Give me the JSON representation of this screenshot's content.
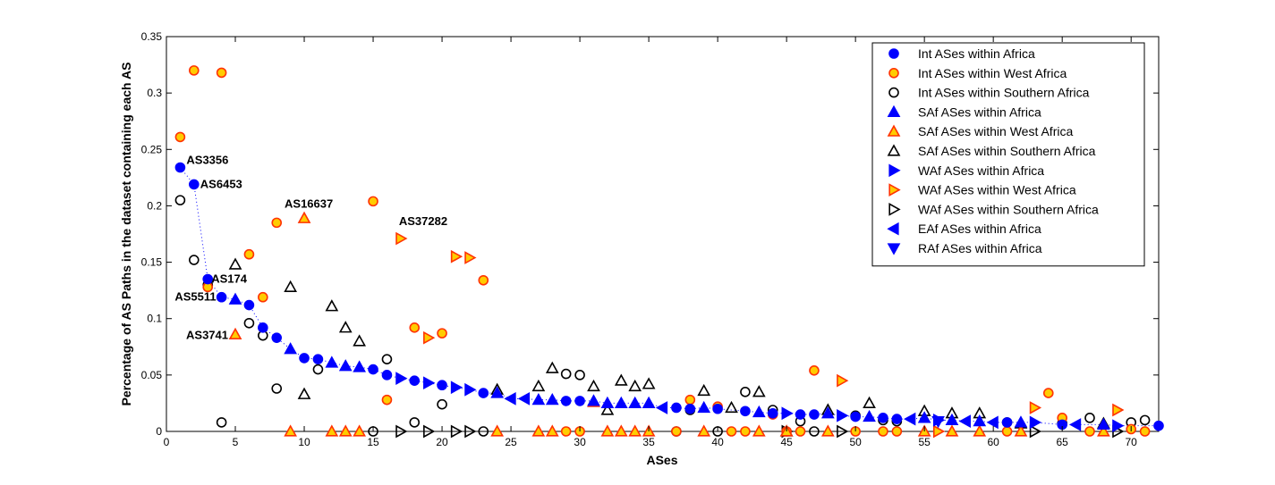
{
  "chart_data": {
    "type": "scatter",
    "title": "",
    "xlabel": "ASes",
    "ylabel": "Percentage of AS Paths in the dataset containing each AS",
    "xlim": [
      0,
      72
    ],
    "ylim": [
      0,
      0.35
    ],
    "xticks": [
      0,
      5,
      10,
      15,
      20,
      25,
      30,
      35,
      40,
      45,
      50,
      55,
      60,
      65,
      70
    ],
    "yticks": [
      0,
      0.05,
      0.1,
      0.15,
      0.2,
      0.25,
      0.3,
      0.35
    ],
    "grid": false,
    "legend_position": "top-right",
    "series": [
      {
        "name": "Int ASes within Africa",
        "marker": "circle",
        "fill": "#0000ff",
        "stroke": "#0000ff",
        "line": "dotted",
        "points": [
          [
            1,
            0.234
          ],
          [
            2,
            0.219
          ],
          [
            3,
            0.135
          ],
          [
            4,
            0.119
          ],
          [
            6,
            0.112
          ],
          [
            7,
            0.092
          ],
          [
            8,
            0.083
          ],
          [
            10,
            0.065
          ],
          [
            11,
            0.064
          ],
          [
            15,
            0.055
          ],
          [
            16,
            0.05
          ],
          [
            18,
            0.045
          ],
          [
            20,
            0.041
          ],
          [
            23,
            0.034
          ],
          [
            29,
            0.027
          ],
          [
            30,
            0.027
          ],
          [
            37,
            0.021
          ],
          [
            38,
            0.02
          ],
          [
            40,
            0.02
          ],
          [
            42,
            0.018
          ],
          [
            44,
            0.016
          ],
          [
            46,
            0.015
          ],
          [
            47,
            0.015
          ],
          [
            50,
            0.013
          ],
          [
            52,
            0.012
          ],
          [
            53,
            0.011
          ],
          [
            61,
            0.008
          ],
          [
            65,
            0.006
          ],
          [
            72,
            0.005
          ]
        ]
      },
      {
        "name": "Int ASes within West Africa",
        "marker": "circle",
        "fill": "#ffcc00",
        "stroke": "#ff3300",
        "line": "none",
        "points": [
          [
            1,
            0.261
          ],
          [
            2,
            0.32
          ],
          [
            3,
            0.128
          ],
          [
            4,
            0.318
          ],
          [
            6,
            0.157
          ],
          [
            7,
            0.119
          ],
          [
            8,
            0.185
          ],
          [
            15,
            0.204
          ],
          [
            16,
            0.028
          ],
          [
            18,
            0.092
          ],
          [
            20,
            0.087
          ],
          [
            23,
            0.134
          ],
          [
            29,
            0.0
          ],
          [
            30,
            0.0
          ],
          [
            37,
            0.0
          ],
          [
            38,
            0.028
          ],
          [
            40,
            0.022
          ],
          [
            41,
            0.0
          ],
          [
            42,
            0.0
          ],
          [
            44,
            0.015
          ],
          [
            45,
            0.0
          ],
          [
            46,
            0.0
          ],
          [
            47,
            0.054
          ],
          [
            50,
            0.0
          ],
          [
            52,
            0.0
          ],
          [
            53,
            0.0
          ],
          [
            61,
            0.0
          ],
          [
            64,
            0.034
          ],
          [
            65,
            0.012
          ],
          [
            67,
            0.0
          ],
          [
            70,
            0.002
          ],
          [
            71,
            0.0
          ]
        ]
      },
      {
        "name": "Int ASes within Southern Africa",
        "marker": "circle",
        "fill": "none",
        "stroke": "#000000",
        "line": "none",
        "points": [
          [
            1,
            0.205
          ],
          [
            2,
            0.152
          ],
          [
            3,
            0.13
          ],
          [
            4,
            0.008
          ],
          [
            6,
            0.096
          ],
          [
            7,
            0.085
          ],
          [
            8,
            0.038
          ],
          [
            11,
            0.055
          ],
          [
            15,
            0.0
          ],
          [
            16,
            0.064
          ],
          [
            18,
            0.008
          ],
          [
            20,
            0.024
          ],
          [
            23,
            0.0
          ],
          [
            29,
            0.051
          ],
          [
            30,
            0.05
          ],
          [
            37,
            0.0
          ],
          [
            38,
            0.019
          ],
          [
            40,
            0.0
          ],
          [
            42,
            0.035
          ],
          [
            44,
            0.019
          ],
          [
            46,
            0.009
          ],
          [
            47,
            0.0
          ],
          [
            50,
            0.014
          ],
          [
            52,
            0.01
          ],
          [
            53,
            0.009
          ],
          [
            61,
            0.008
          ],
          [
            65,
            0.007
          ],
          [
            67,
            0.012
          ],
          [
            70,
            0.008
          ],
          [
            71,
            0.01
          ]
        ]
      },
      {
        "name": "SAf ASes within Africa",
        "marker": "triangle-up",
        "fill": "#0000ff",
        "stroke": "#0000ff",
        "line": "dotted",
        "points": [
          [
            5,
            0.117
          ],
          [
            9,
            0.073
          ],
          [
            12,
            0.061
          ],
          [
            13,
            0.058
          ],
          [
            14,
            0.057
          ],
          [
            24,
            0.034
          ],
          [
            27,
            0.028
          ],
          [
            28,
            0.028
          ],
          [
            31,
            0.027
          ],
          [
            32,
            0.025
          ],
          [
            33,
            0.025
          ],
          [
            34,
            0.025
          ],
          [
            35,
            0.025
          ],
          [
            39,
            0.021
          ],
          [
            43,
            0.017
          ],
          [
            48,
            0.016
          ],
          [
            51,
            0.013
          ],
          [
            55,
            0.012
          ],
          [
            57,
            0.01
          ],
          [
            59,
            0.009
          ],
          [
            62,
            0.008
          ],
          [
            68,
            0.006
          ]
        ]
      },
      {
        "name": "SAf ASes within West Africa",
        "marker": "triangle-up",
        "fill": "#ffcc00",
        "stroke": "#ff3300",
        "line": "none",
        "points": [
          [
            5,
            0.086
          ],
          [
            9,
            0.0
          ],
          [
            10,
            0.189
          ],
          [
            12,
            0.0
          ],
          [
            13,
            0.0
          ],
          [
            14,
            0.0
          ],
          [
            24,
            0.0
          ],
          [
            27,
            0.0
          ],
          [
            28,
            0.0
          ],
          [
            31,
            0.026
          ],
          [
            32,
            0.0
          ],
          [
            33,
            0.0
          ],
          [
            34,
            0.0
          ],
          [
            35,
            0.0
          ],
          [
            39,
            0.0
          ],
          [
            43,
            0.0
          ],
          [
            45,
            0.0
          ],
          [
            48,
            0.0
          ],
          [
            55,
            0.0
          ],
          [
            57,
            0.0
          ],
          [
            59,
            0.0
          ],
          [
            62,
            0.0
          ],
          [
            68,
            0.0
          ]
        ]
      },
      {
        "name": "SAf ASes within Southern Africa",
        "marker": "triangle-up",
        "fill": "none",
        "stroke": "#000000",
        "line": "none",
        "points": [
          [
            5,
            0.148
          ],
          [
            9,
            0.128
          ],
          [
            10,
            0.033
          ],
          [
            12,
            0.111
          ],
          [
            13,
            0.092
          ],
          [
            14,
            0.08
          ],
          [
            24,
            0.037
          ],
          [
            27,
            0.04
          ],
          [
            28,
            0.056
          ],
          [
            31,
            0.04
          ],
          [
            32,
            0.019
          ],
          [
            33,
            0.045
          ],
          [
            34,
            0.04
          ],
          [
            35,
            0.042
          ],
          [
            39,
            0.036
          ],
          [
            41,
            0.021
          ],
          [
            43,
            0.035
          ],
          [
            45,
            0.0
          ],
          [
            48,
            0.019
          ],
          [
            51,
            0.025
          ],
          [
            55,
            0.018
          ],
          [
            57,
            0.016
          ],
          [
            59,
            0.016
          ],
          [
            62,
            0.007
          ],
          [
            68,
            0.007
          ]
        ]
      },
      {
        "name": "WAf ASes within Africa",
        "marker": "triangle-right",
        "fill": "#0000ff",
        "stroke": "#0000ff",
        "line": "dotted",
        "points": [
          [
            17,
            0.047
          ],
          [
            19,
            0.043
          ],
          [
            21,
            0.039
          ],
          [
            22,
            0.037
          ],
          [
            45,
            0.016
          ],
          [
            49,
            0.014
          ],
          [
            56,
            0.01
          ],
          [
            63,
            0.008
          ],
          [
            69,
            0.005
          ]
        ]
      },
      {
        "name": "WAf ASes within West Africa",
        "marker": "triangle-right",
        "fill": "#ffcc00",
        "stroke": "#ff3300",
        "line": "none",
        "points": [
          [
            17,
            0.171
          ],
          [
            19,
            0.083
          ],
          [
            21,
            0.155
          ],
          [
            22,
            0.154
          ],
          [
            49,
            0.045
          ],
          [
            56,
            0.0
          ],
          [
            63,
            0.021
          ],
          [
            69,
            0.019
          ]
        ]
      },
      {
        "name": "WAf ASes within Southern Africa",
        "marker": "triangle-right",
        "fill": "none",
        "stroke": "#000000",
        "line": "none",
        "points": [
          [
            17,
            0.0
          ],
          [
            19,
            0.0
          ],
          [
            21,
            0.0
          ],
          [
            22,
            0.0
          ],
          [
            45,
            0.0
          ],
          [
            49,
            0.0
          ],
          [
            63,
            0.0
          ],
          [
            69,
            0.0
          ]
        ]
      },
      {
        "name": "EAf ASes within Africa",
        "marker": "triangle-left",
        "fill": "#0000ff",
        "stroke": "#0000ff",
        "line": "dotted",
        "points": [
          [
            25,
            0.029
          ],
          [
            26,
            0.029
          ],
          [
            36,
            0.021
          ],
          [
            54,
            0.011
          ],
          [
            58,
            0.009
          ],
          [
            60,
            0.008
          ],
          [
            66,
            0.006
          ]
        ]
      },
      {
        "name": "RAf ASes within Africa",
        "marker": "triangle-down",
        "fill": "#0000ff",
        "stroke": "#0000ff",
        "line": "none",
        "points": [
          [
            56,
            0.009
          ]
        ]
      }
    ],
    "annotations": [
      {
        "text": "AS3356",
        "x": 1,
        "y": 0.234
      },
      {
        "text": "AS6453",
        "x": 2,
        "y": 0.219
      },
      {
        "text": "AS16637",
        "x": 10,
        "y": 0.189
      },
      {
        "text": "AS37282",
        "x": 17,
        "y": 0.171
      },
      {
        "text": "AS174",
        "x": 3,
        "y": 0.135
      },
      {
        "text": "AS5511",
        "x": 4,
        "y": 0.119
      },
      {
        "text": "AS3741",
        "x": 5,
        "y": 0.086
      }
    ]
  }
}
